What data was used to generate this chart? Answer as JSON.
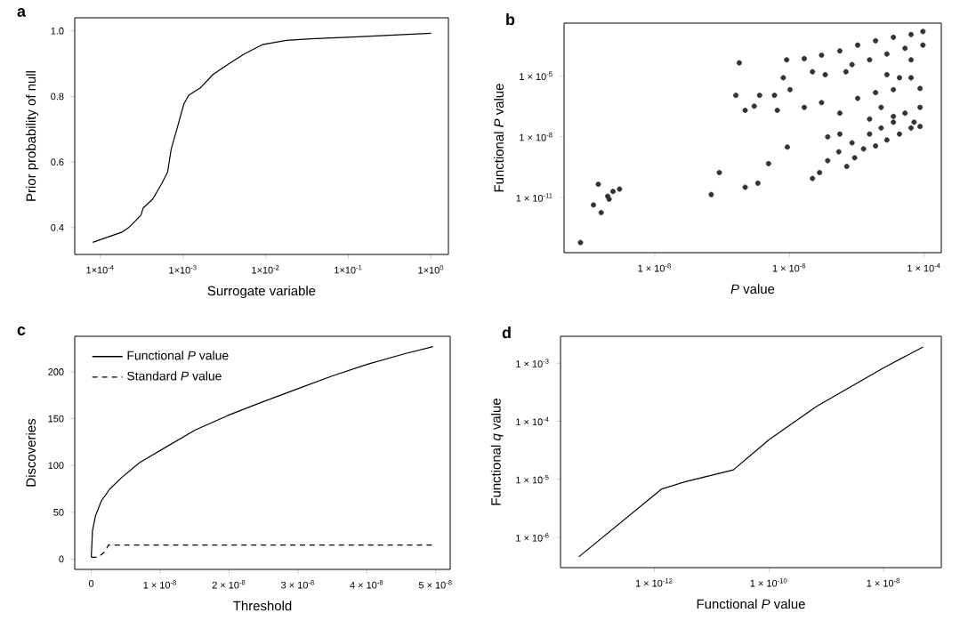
{
  "chart_data": [
    {
      "type": "line",
      "title": "a",
      "xlabel": "Surrogate variable",
      "ylabel": "Prior probability of null",
      "log": "x",
      "xlim": [
        4.9e-05,
        1.62
      ],
      "ylim": [
        0.318,
        1.04
      ],
      "xticks": [
        {
          "value": 0.0001,
          "label": "1×10$^{-4}$"
        },
        {
          "value": 0.001,
          "label": "1×10$^{-3}$"
        },
        {
          "value": 0.01,
          "label": "1×10$^{-2}$"
        },
        {
          "value": 0.1,
          "label": "1×10$^{-1}$"
        },
        {
          "value": 1,
          "label": "1×10$^{0}$"
        }
      ],
      "yticks": [
        {
          "value": 0.4,
          "label": "0.4"
        },
        {
          "value": 0.6,
          "label": "0.6"
        },
        {
          "value": 0.8,
          "label": "0.8"
        },
        {
          "value": 1.0,
          "label": "1.0"
        }
      ],
      "series": [
        {
          "color": "#000000",
          "x": [
            8.1e-05,
            0.000186,
            0.00022,
            0.00031,
            0.00033,
            0.00043,
            0.00055,
            0.00065,
            0.00072,
            0.00085,
            0.00102,
            0.00117,
            0.00162,
            0.0023,
            0.0035,
            0.0056,
            0.0091,
            0.0178,
            0.035,
            0.129,
            1.0
          ],
          "values": [
            0.355,
            0.387,
            0.4,
            0.438,
            0.46,
            0.487,
            0.533,
            0.569,
            0.64,
            0.704,
            0.776,
            0.804,
            0.826,
            0.867,
            0.898,
            0.931,
            0.958,
            0.971,
            0.976,
            0.982,
            0.993
          ]
        }
      ]
    },
    {
      "type": "scatter",
      "title": "b",
      "xlabel": "*P* value",
      "ylabel": "Functional *P* value",
      "log": "xy",
      "marker": "circle",
      "xlim": [
        4.5e-10,
        0.00018
      ],
      "ylim": [
        1.9e-14,
        0.004
      ],
      "xticks": [
        {
          "value": 1e-08,
          "label": "1 × 10$^{-8}$"
        },
        {
          "value": 1e-06,
          "label": "1 × 10$^{-6}$"
        },
        {
          "value": 0.0001,
          "label": "1 × 10$^{-4}$"
        }
      ],
      "yticks": [
        {
          "value": 1e-11,
          "label": "1 × 10$^{-11}$"
        },
        {
          "value": 1e-08,
          "label": "1 × 10$^{-8}$"
        },
        {
          "value": 1e-05,
          "label": "1 × 10$^{-5}$"
        }
      ],
      "series": [
        {
          "color": "#333333",
          "x": [
            7.9e-10,
            1.45e-09,
            1.23e-09,
            1.6e-09,
            2.1e-09,
            2.4e-09,
            3e-09,
            2e-09,
            6.9e-08,
            9.1e-08,
            2.2e-07,
            3.4e-07,
            4.9e-07,
            9.3e-07,
            1.8e-07,
            1.6e-07,
            2.2e-07,
            3e-07,
            3.6e-07,
            6e-07,
            6.6e-07,
            8.1e-07,
            1.02e-06,
            9.1e-07,
            1.66e-06,
            3e-06,
            5.6e-06,
            1.03e-05,
            1.9e-05,
            3.5e-05,
            6.4e-05,
            9.6e-05,
            9.6e-05,
            5.2e-05,
            2.8e-05,
            1.55e-05,
            8.5e-06,
            2.2e-06,
            3.4e-06,
            1.66e-06,
            3e-06,
            5.6e-06,
            1.03e-05,
            1.9e-05,
            3.5e-05,
            6.4e-05,
            8.7e-05,
            5.2e-05,
            3.5e-05,
            2.3e-05,
            1.55e-05,
            8.7e-05,
            7.1e-05,
            2.2e-06,
            2.8e-06,
            3.7e-06,
            5.4e-06,
            7.1e-06,
            9.3e-06,
            1.26e-05,
            1.9e-05,
            2.8e-05,
            4.3e-05,
            6.4e-05,
            8.7e-05,
            3.7e-06,
            5.6e-06,
            8.5e-06,
            1.55e-05,
            2.3e-05,
            3.5e-05,
            4.3e-05,
            2.8e-05,
            6.4e-05,
            6.9e-06
          ],
          "values": [
            6e-14,
            4.5e-11,
            4.3e-12,
            1.8e-12,
            8.3e-12,
            2e-11,
            2.6e-11,
            1.15e-11,
            1.4e-11,
            1.7e-10,
            3.2e-11,
            5.1e-11,
            4.7e-10,
            3.1e-09,
            4.4e-05,
            1.1e-06,
            2e-07,
            3.2e-07,
            1.1e-06,
            1.1e-06,
            2e-07,
            8.1e-06,
            2.1e-06,
            6.2e-05,
            7.1e-05,
            0.000105,
            0.00017,
            0.00033,
            0.00054,
            0.0008,
            0.0011,
            0.00155,
            0.00033,
            0.00023,
            0.00012,
            6.2e-05,
            3.6e-05,
            1.6e-05,
            1.15e-05,
            2.8e-07,
            4.8e-07,
            1.45e-07,
            7.8e-07,
            1.5e-06,
            2.1e-06,
            8.1e-06,
            2.4e-06,
            1.45e-07,
            1e-07,
            2.8e-07,
            7.4e-08,
            2.8e-07,
            5.2e-08,
            8.7e-11,
            1.7e-10,
            6.6e-10,
            1.8e-09,
            3.4e-10,
            9.1e-10,
            2.5e-09,
            3.5e-09,
            6.9e-09,
            1.35e-08,
            2.7e-08,
            3.2e-08,
            9.8e-09,
            1.35e-08,
            5e-09,
            1.35e-08,
            2.7e-08,
            5.2e-08,
            8.1e-06,
            1.15e-05,
            6.2e-05,
            1.6e-05
          ]
        }
      ]
    },
    {
      "type": "line",
      "title": "c",
      "xlabel": "Threshold",
      "ylabel": "Discoveries",
      "legend": "top left",
      "xlim": [
        -2.4e-09,
        5.21e-08
      ],
      "ylim": [
        -11,
        238
      ],
      "xticks": [
        {
          "value": 0,
          "label": "0"
        },
        {
          "value": 1e-08,
          "label": "1 × 10$^{-8}$"
        },
        {
          "value": 2e-08,
          "label": "2 × 10$^{-8}$"
        },
        {
          "value": 3e-08,
          "label": "3 × 10$^{-8}$"
        },
        {
          "value": 4e-08,
          "label": "4 × 10$^{-8}$"
        },
        {
          "value": 5e-08,
          "label": "5 × 10$^{-8}$"
        }
      ],
      "yticks": [
        0,
        50,
        100,
        150,
        200
      ],
      "series": [
        {
          "name": "Functional *P* value",
          "color": "#000000",
          "line_style": "solid",
          "x": [
            0,
            1.7e-10,
            6e-10,
            1.45e-09,
            2.7e-09,
            4.4e-09,
            7e-09,
            1e-08,
            1.51e-08,
            2e-08,
            2.49e-08,
            3e-08,
            3.51e-08,
            4e-08,
            4.53e-08,
            4.96e-08
          ],
          "values": [
            2,
            30,
            46,
            62,
            75,
            87,
            103,
            116,
            138,
            154,
            168,
            182,
            196,
            208,
            219,
            227
          ]
        },
        {
          "name": "Standard *P* value",
          "color": "#000000",
          "line_style": "dashed",
          "x": [
            0,
            1e-09,
            2e-09,
            2.5e-09,
            4.96e-08
          ],
          "values": [
            2,
            2,
            8,
            15,
            15
          ]
        }
      ]
    },
    {
      "type": "line",
      "title": "d",
      "xlabel": "Functional *P* value",
      "ylabel": "Functional *q* value",
      "log": "xy",
      "xlim": [
        2.3e-14,
        1.02e-07
      ],
      "ylim": [
        3e-07,
        0.0029
      ],
      "xticks": [
        {
          "value": 1e-12,
          "label": "1 × 10$^{-12}$"
        },
        {
          "value": 1e-10,
          "label": "1 × 10$^{-10}$"
        },
        {
          "value": 1e-08,
          "label": "1 × 10$^{-8}$"
        }
      ],
      "yticks": [
        {
          "value": 1e-06,
          "label": "1 × 10$^{-6}$"
        },
        {
          "value": 1e-05,
          "label": "1 × 10$^{-5}$"
        },
        {
          "value": 0.0001,
          "label": "1 × 10$^{-4}$"
        },
        {
          "value": 0.001,
          "label": "1 × 10$^{-3}$"
        }
      ],
      "series": [
        {
          "color": "#000000",
          "x": [
            4.8e-14,
            1.35e-12,
            3.5e-12,
            2.4e-11,
            1e-10,
            6.8e-10,
            1e-08,
            4.9e-08
          ],
          "values": [
            4.6e-07,
            6.8e-06,
            9.1e-06,
            1.45e-05,
            4.8e-05,
            0.00018,
            0.00083,
            0.0019
          ]
        }
      ]
    }
  ]
}
